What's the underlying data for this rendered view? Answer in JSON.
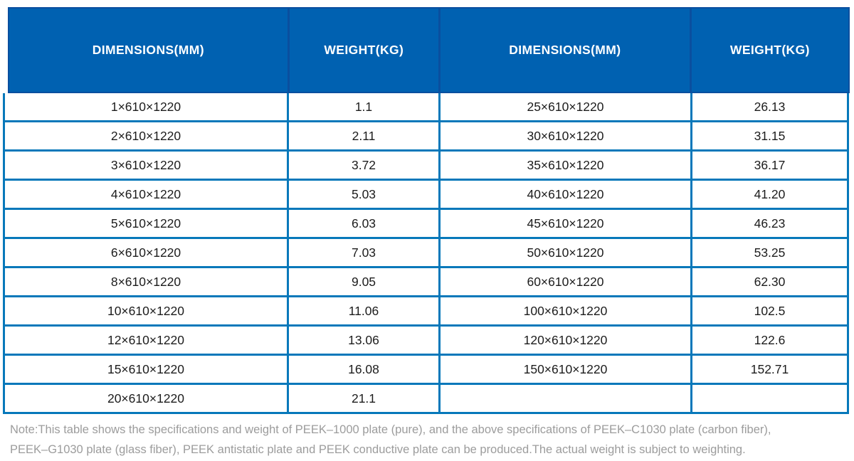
{
  "colors": {
    "header_bg": "#0061b1",
    "header_border": "#0a4f9f",
    "grid_blue": "#0778ba",
    "cell_text": "#1c1c1c",
    "header_text": "#ffffff",
    "note_text": "#9c9c9c"
  },
  "table": {
    "headers": [
      "DIMENSIONS(MM)",
      "WEIGHT(KG)",
      "DIMENSIONS(MM)",
      "WEIGHT(KG)"
    ],
    "rows": [
      [
        "1×610×1220",
        "1.1",
        "25×610×1220",
        "26.13"
      ],
      [
        "2×610×1220",
        "2.11",
        "30×610×1220",
        "31.15"
      ],
      [
        "3×610×1220",
        "3.72",
        "35×610×1220",
        "36.17"
      ],
      [
        "4×610×1220",
        "5.03",
        "40×610×1220",
        "41.20"
      ],
      [
        "5×610×1220",
        "6.03",
        "45×610×1220",
        "46.23"
      ],
      [
        "6×610×1220",
        "7.03",
        "50×610×1220",
        "53.25"
      ],
      [
        "8×610×1220",
        "9.05",
        "60×610×1220",
        "62.30"
      ],
      [
        "10×610×1220",
        "11.06",
        "100×610×1220",
        "102.5"
      ],
      [
        "12×610×1220",
        "13.06",
        "120×610×1220",
        "122.6"
      ],
      [
        "15×610×1220",
        "16.08",
        "150×610×1220",
        "152.71"
      ],
      [
        "20×610×1220",
        "21.1",
        "",
        ""
      ]
    ]
  },
  "note": {
    "lines": [
      "Note:This table shows the specifications and weight of PEEK–1000 plate (pure), and the above specifications of PEEK–C1030 plate (carbon fiber),",
      "PEEK–G1030 plate (glass fiber), PEEK antistatic plate and PEEK conductive plate can be produced.The actual weight is subject to weighting."
    ]
  }
}
